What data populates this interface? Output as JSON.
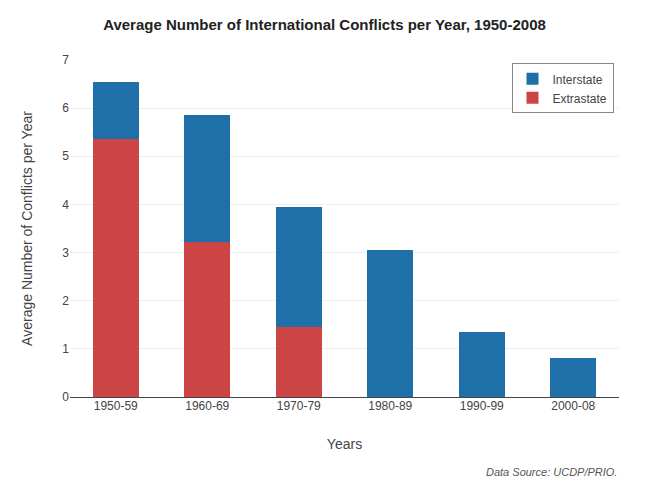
{
  "chart_data": {
    "type": "bar",
    "title": "Average Number of International Conflicts per Year, 1950-2008",
    "xlabel": "Years",
    "ylabel": "Average Number of Conflicts per Year",
    "categories": [
      "1950-59",
      "1960-69",
      "1970-79",
      "1980-89",
      "1990-99",
      "2000-08"
    ],
    "series": [
      {
        "name": "Extrastate",
        "color": "#cc4444",
        "values": [
          5.35,
          3.22,
          1.45,
          0.0,
          0.0,
          0.0
        ]
      },
      {
        "name": "Interstate",
        "color": "#1f6fa8",
        "values": [
          1.2,
          2.63,
          2.5,
          3.05,
          1.35,
          0.82
        ]
      }
    ],
    "stacked": true,
    "ylim": [
      0,
      7
    ],
    "yticks": [
      0,
      1,
      2,
      3,
      4,
      5,
      6,
      7
    ],
    "grid": true,
    "legend": "upper right",
    "annotations": [
      "Data Source: UCDP/PRIO."
    ]
  }
}
